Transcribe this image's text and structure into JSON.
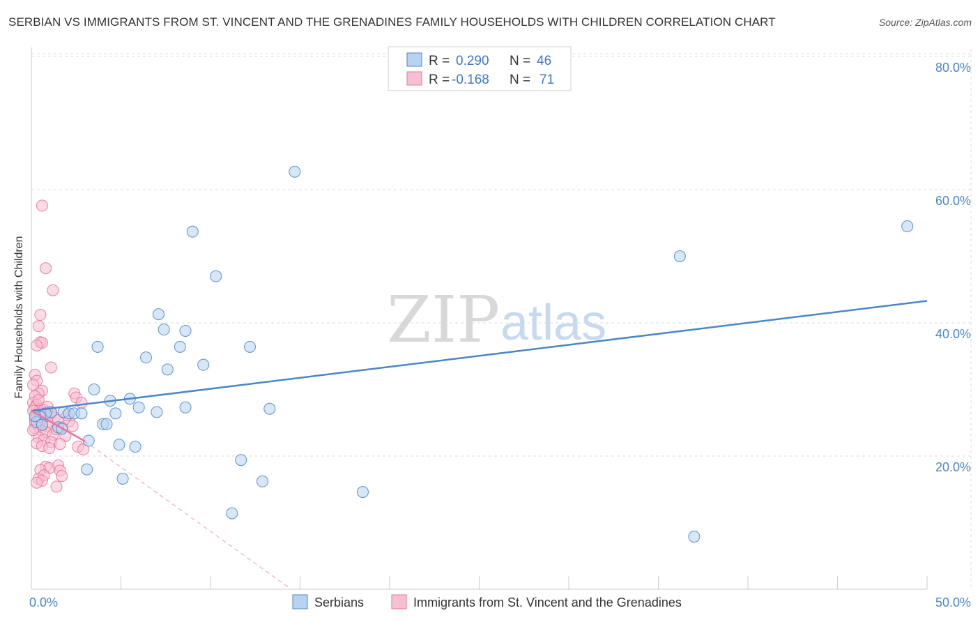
{
  "header": {
    "title": "SERBIAN VS IMMIGRANTS FROM ST. VINCENT AND THE GRENADINES FAMILY HOUSEHOLDS WITH CHILDREN CORRELATION CHART",
    "source": "Source: ZipAtlas.com"
  },
  "watermark": {
    "zip": "ZIP",
    "atlas": "atlas"
  },
  "colors": {
    "blue": "#4a86c8",
    "blue_fill": "#b8d3f0",
    "pink": "#e8739a",
    "pink_fill": "#f7c0d2",
    "grid": "#dddddd"
  },
  "chart_data": {
    "type": "scatter",
    "title": "SERBIAN VS IMMIGRANTS FROM ST. VINCENT AND THE GRENADINES FAMILY HOUSEHOLDS WITH CHILDREN CORRELATION CHART",
    "xlabel": "",
    "ylabel": "Family Households with Children",
    "xlim": [
      0,
      50
    ],
    "ylim": [
      0,
      82
    ],
    "x_ticks": [
      {
        "value": 0,
        "label": "0.0%"
      },
      {
        "value": 50,
        "label": "50.0%"
      }
    ],
    "y_ticks": [
      {
        "value": 20,
        "label": "20.0%"
      },
      {
        "value": 40,
        "label": "40.0%"
      },
      {
        "value": 60,
        "label": "60.0%"
      },
      {
        "value": 80,
        "label": "80.0%"
      }
    ],
    "legend": [
      {
        "name": "Serbians",
        "r_label": "R =",
        "r_value": "0.290",
        "n_label": "N =",
        "n_value": "46"
      },
      {
        "name": "Immigrants from St. Vincent and the Grenadines",
        "r_label": "R =",
        "r_value": "-0.168",
        "n_label": "N =",
        "n_value": "71"
      }
    ],
    "series": [
      {
        "name": "Serbians",
        "color": "#4a86c8",
        "trend": {
          "x0": 0,
          "y0": 26.8,
          "x1": 50,
          "y1": 43.3
        },
        "points": [
          [
            14.7,
            62.7
          ],
          [
            48.9,
            54.5
          ],
          [
            9.0,
            53.7
          ],
          [
            36.2,
            50.0
          ],
          [
            10.3,
            47.0
          ],
          [
            7.1,
            41.3
          ],
          [
            7.4,
            39.0
          ],
          [
            8.6,
            38.8
          ],
          [
            3.7,
            36.4
          ],
          [
            8.3,
            36.4
          ],
          [
            12.2,
            36.4
          ],
          [
            6.4,
            34.8
          ],
          [
            9.6,
            33.7
          ],
          [
            7.6,
            33.0
          ],
          [
            3.5,
            30.0
          ],
          [
            4.4,
            28.3
          ],
          [
            5.5,
            28.6
          ],
          [
            6.0,
            27.3
          ],
          [
            8.6,
            27.3
          ],
          [
            13.3,
            27.1
          ],
          [
            1.1,
            26.6
          ],
          [
            1.8,
            26.6
          ],
          [
            2.1,
            26.4
          ],
          [
            2.4,
            26.4
          ],
          [
            2.8,
            26.4
          ],
          [
            4.7,
            26.4
          ],
          [
            7.0,
            26.6
          ],
          [
            0.8,
            26.4
          ],
          [
            0.5,
            25.9
          ],
          [
            0.3,
            25.1
          ],
          [
            0.6,
            24.7
          ],
          [
            1.5,
            24.3
          ],
          [
            4.0,
            24.8
          ],
          [
            4.2,
            24.8
          ],
          [
            1.7,
            24.1
          ],
          [
            3.2,
            22.3
          ],
          [
            4.9,
            21.7
          ],
          [
            5.8,
            21.4
          ],
          [
            11.7,
            19.4
          ],
          [
            3.1,
            18.0
          ],
          [
            5.1,
            16.6
          ],
          [
            12.9,
            16.2
          ],
          [
            18.5,
            14.6
          ],
          [
            11.2,
            11.4
          ],
          [
            37.0,
            7.9
          ],
          [
            0.2,
            26.0
          ]
        ]
      },
      {
        "name": "Immigrants from St. Vincent and the Grenadines",
        "color": "#e8739a",
        "trend": {
          "x0": 0,
          "y0": 26.8,
          "x1": 3.0,
          "y1": 22.2
        },
        "trend_extension": {
          "x0": 3.0,
          "y0": 22.2,
          "x1": 14.5,
          "y1": 0.0
        },
        "points": [
          [
            0.6,
            57.6
          ],
          [
            0.8,
            48.2
          ],
          [
            1.2,
            44.9
          ],
          [
            0.5,
            41.2
          ],
          [
            0.4,
            39.5
          ],
          [
            0.5,
            37.1
          ],
          [
            0.6,
            37.0
          ],
          [
            0.3,
            36.6
          ],
          [
            1.1,
            33.3
          ],
          [
            0.2,
            32.2
          ],
          [
            0.3,
            31.3
          ],
          [
            0.1,
            30.7
          ],
          [
            0.6,
            29.8
          ],
          [
            0.4,
            29.4
          ],
          [
            0.2,
            29.0
          ],
          [
            2.4,
            29.4
          ],
          [
            2.5,
            28.8
          ],
          [
            0.1,
            28.0
          ],
          [
            0.3,
            27.7
          ],
          [
            2.8,
            28.0
          ],
          [
            0.2,
            27.3
          ],
          [
            0.5,
            27.1
          ],
          [
            0.7,
            26.9
          ],
          [
            0.9,
            26.6
          ],
          [
            1.1,
            26.4
          ],
          [
            0.1,
            26.8
          ],
          [
            0.3,
            26.2
          ],
          [
            0.4,
            26.0
          ],
          [
            0.6,
            25.8
          ],
          [
            1.3,
            25.8
          ],
          [
            0.2,
            25.5
          ],
          [
            0.5,
            25.3
          ],
          [
            0.9,
            25.1
          ],
          [
            1.5,
            25.4
          ],
          [
            2.1,
            25.2
          ],
          [
            0.3,
            24.9
          ],
          [
            0.6,
            24.6
          ],
          [
            1.0,
            24.4
          ],
          [
            1.7,
            24.3
          ],
          [
            2.3,
            24.5
          ],
          [
            0.2,
            24.2
          ],
          [
            0.5,
            23.9
          ],
          [
            0.8,
            23.6
          ],
          [
            1.2,
            23.2
          ],
          [
            1.9,
            23.0
          ],
          [
            0.4,
            22.8
          ],
          [
            0.7,
            22.4
          ],
          [
            1.1,
            22.1
          ],
          [
            1.6,
            21.8
          ],
          [
            2.6,
            21.4
          ],
          [
            0.3,
            21.9
          ],
          [
            0.6,
            21.5
          ],
          [
            1.0,
            21.2
          ],
          [
            2.9,
            21.0
          ],
          [
            0.8,
            18.4
          ],
          [
            1.0,
            18.2
          ],
          [
            1.5,
            18.6
          ],
          [
            0.5,
            17.9
          ],
          [
            1.6,
            17.8
          ],
          [
            0.7,
            17.1
          ],
          [
            1.7,
            17.0
          ],
          [
            0.4,
            16.6
          ],
          [
            0.6,
            16.3
          ],
          [
            0.3,
            16.0
          ],
          [
            1.4,
            15.4
          ],
          [
            0.2,
            25.0
          ],
          [
            0.1,
            23.9
          ],
          [
            2.0,
            26.1
          ],
          [
            1.4,
            24.0
          ],
          [
            0.9,
            27.4
          ],
          [
            0.4,
            28.4
          ]
        ]
      }
    ]
  }
}
